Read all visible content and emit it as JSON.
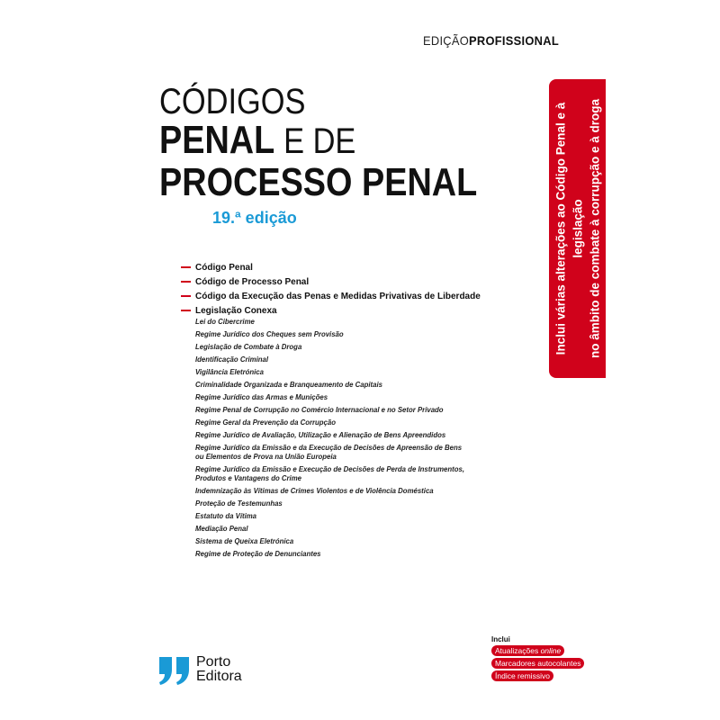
{
  "header": {
    "edition_light": "EDIÇÃO",
    "edition_bold": "PROFISSIONAL"
  },
  "title": {
    "line1": "CÓDIGOS",
    "line2_bold": "PENAL",
    "line2_light": "E DE",
    "line3": "PROCESSO PENAL",
    "edition": "19.ª edição"
  },
  "contents": {
    "main": [
      "Código Penal",
      "Código de Processo Penal",
      "Código da Execução das Penas e Medidas Privativas de Liberdade",
      "Legislação Conexa"
    ],
    "sub": [
      "Lei do Cibercrime",
      "Regime Jurídico dos Cheques sem Provisão",
      "Legislação de Combate à Droga",
      "Identificação Criminal",
      "Vigilância Eletrónica",
      "Criminalidade Organizada e Branqueamento de Capitais",
      "Regime Jurídico das Armas e Munições",
      "Regime Penal de Corrupção no Comércio Internacional e no Setor Privado",
      "Regime Geral da Prevenção da Corrupção",
      "Regime Jurídico de Avaliação, Utilização e Alienação de Bens Apreendidos",
      "Regime Jurídico da Emissão e da Execução de Decisões de Apreensão de Bens ou Elementos de Prova na União Europeia",
      "Regime Jurídico da Emissão e Execução de Decisões de Perda de Instrumentos, Produtos e Vantagens do Crime",
      "Indemnização às Vítimas de Crimes Violentos e de Violência Doméstica",
      "Proteção de Testemunhas",
      "Estatuto da Vítima",
      "Mediação Penal",
      "Sistema de Queixa Eletrónica",
      "Regime de Proteção de Denunciantes"
    ]
  },
  "banner": {
    "line1": "Inclui várias alterações ao Código Penal e à legislação",
    "line2": "no âmbito de combate à corrupção e à droga"
  },
  "publisher": {
    "name_line1": "Porto",
    "name_line2": "Editora",
    "logo_icon": "quote-marks-icon"
  },
  "includes": {
    "label": "Inclui",
    "items": [
      "Atualizações",
      "Marcadores autocolantes",
      "Índice remissivo"
    ],
    "online": "online"
  },
  "colors": {
    "accent_red": "#d0021b",
    "accent_blue": "#1a9ad6"
  }
}
